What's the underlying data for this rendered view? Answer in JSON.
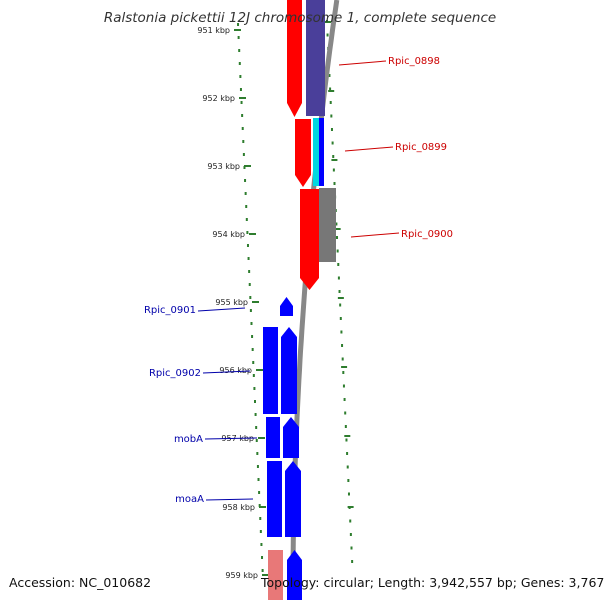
{
  "title": "Ralstonia pickettii 12J chromosome 1, complete sequence",
  "footer": {
    "accession": "Accession: NC_010682",
    "stats": "Topology: circular; Length: 3,942,557 bp; Genes: 3,767"
  },
  "ruler": {
    "unit": "kbp",
    "ticks": [
      {
        "label": "951 kbp",
        "kb": 951
      },
      {
        "label": "952 kbp",
        "kb": 952
      },
      {
        "label": "953 kbp",
        "kb": 953
      },
      {
        "label": "954 kbp",
        "kb": 954
      },
      {
        "label": "955 kbp",
        "kb": 955
      },
      {
        "label": "956 kbp",
        "kb": 956
      },
      {
        "label": "957 kbp",
        "kb": 957
      },
      {
        "label": "958 kbp",
        "kb": 958
      },
      {
        "label": "959 kbp",
        "kb": 959
      }
    ]
  },
  "colors": {
    "forward": "#ff0000",
    "reverse": "#0000ff",
    "label_forward": "#cc0000",
    "label_reverse": "#0000aa",
    "backbone": "#888888",
    "ruler": "#2e7d2e",
    "purple": "#4a3f9a",
    "gray": "#777777",
    "cyan": "#00d8e0",
    "pink": "#e87878"
  },
  "genes": [
    {
      "label": "Rpic_0898",
      "strand": "forward"
    },
    {
      "label": "Rpic_0899",
      "strand": "forward"
    },
    {
      "label": "Rpic_0900",
      "strand": "forward"
    },
    {
      "label": "Rpic_0901",
      "strand": "reverse"
    },
    {
      "label": "Rpic_0902",
      "strand": "reverse"
    },
    {
      "label": "mobA",
      "strand": "reverse"
    },
    {
      "label": "moaA",
      "strand": "reverse"
    }
  ]
}
